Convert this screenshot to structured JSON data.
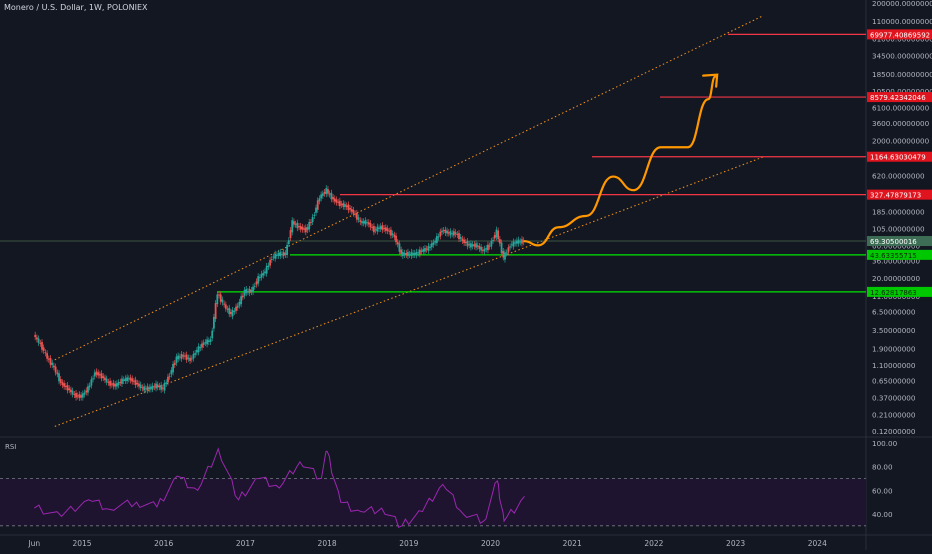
{
  "chart_data": {
    "type": "candlestick",
    "title": "Monero / U.S. Dollar, 1W, POLONIEX",
    "symbol": "XMR/USD",
    "interval": "1W",
    "exchange": "POLONIEX",
    "scale": "log",
    "x_ticks": [
      "Jun",
      "2015",
      "2016",
      "2017",
      "2018",
      "2019",
      "2020",
      "2021",
      "2022",
      "2023",
      "2024"
    ],
    "y_ticks": [
      "200000.00000000",
      "110000.00000000",
      "61000.00000000",
      "34500.00000000",
      "18500.00000000",
      "10500.00000000",
      "6100.00000000",
      "3600.00000000",
      "2000.00000000",
      "1100.00000000",
      "620.00000000",
      "330.00000000",
      "185.00000000",
      "105.00000000",
      "60.00000000",
      "36.00000000",
      "20.00000000",
      "11.00000000",
      "6.50000000",
      "3.50000000",
      "1.90000000",
      "1.10000000",
      "0.65000000",
      "0.37000000",
      "0.21000000",
      "0.12000000"
    ],
    "price_series": [
      {
        "date": "2014-06",
        "price": 3.0
      },
      {
        "date": "2014-07",
        "price": 2.2
      },
      {
        "date": "2014-08",
        "price": 1.4
      },
      {
        "date": "2014-09",
        "price": 1.0
      },
      {
        "date": "2014-10",
        "price": 0.6
      },
      {
        "date": "2014-11",
        "price": 0.5
      },
      {
        "date": "2014-12",
        "price": 0.4
      },
      {
        "date": "2015-01",
        "price": 0.38
      },
      {
        "date": "2015-02",
        "price": 0.5
      },
      {
        "date": "2015-03",
        "price": 0.85
      },
      {
        "date": "2015-04",
        "price": 0.75
      },
      {
        "date": "2015-05",
        "price": 0.6
      },
      {
        "date": "2015-06",
        "price": 0.55
      },
      {
        "date": "2015-07",
        "price": 0.65
      },
      {
        "date": "2015-08",
        "price": 0.7
      },
      {
        "date": "2015-09",
        "price": 0.6
      },
      {
        "date": "2015-10",
        "price": 0.5
      },
      {
        "date": "2015-11",
        "price": 0.5
      },
      {
        "date": "2015-12",
        "price": 0.55
      },
      {
        "date": "2016-01",
        "price": 0.5
      },
      {
        "date": "2016-02",
        "price": 0.8
      },
      {
        "date": "2016-03",
        "price": 1.4
      },
      {
        "date": "2016-04",
        "price": 1.5
      },
      {
        "date": "2016-05",
        "price": 1.3
      },
      {
        "date": "2016-06",
        "price": 1.8
      },
      {
        "date": "2016-07",
        "price": 2.3
      },
      {
        "date": "2016-08",
        "price": 2.5
      },
      {
        "date": "2016-09",
        "price": 12.0
      },
      {
        "date": "2016-10",
        "price": 8.0
      },
      {
        "date": "2016-11",
        "price": 6.0
      },
      {
        "date": "2016-12",
        "price": 8.0
      },
      {
        "date": "2017-01",
        "price": 13.0
      },
      {
        "date": "2017-02",
        "price": 13.0
      },
      {
        "date": "2017-03",
        "price": 20.0
      },
      {
        "date": "2017-04",
        "price": 25.0
      },
      {
        "date": "2017-05",
        "price": 40.0
      },
      {
        "date": "2017-06",
        "price": 45.0
      },
      {
        "date": "2017-07",
        "price": 45.0
      },
      {
        "date": "2017-08",
        "price": 130.0
      },
      {
        "date": "2017-09",
        "price": 110.0
      },
      {
        "date": "2017-10",
        "price": 100.0
      },
      {
        "date": "2017-11",
        "price": 150.0
      },
      {
        "date": "2017-12",
        "price": 300.0
      },
      {
        "date": "2018-01",
        "price": 380.0
      },
      {
        "date": "2018-02",
        "price": 280.0
      },
      {
        "date": "2018-03",
        "price": 240.0
      },
      {
        "date": "2018-04",
        "price": 220.0
      },
      {
        "date": "2018-05",
        "price": 180.0
      },
      {
        "date": "2018-06",
        "price": 130.0
      },
      {
        "date": "2018-07",
        "price": 130.0
      },
      {
        "date": "2018-08",
        "price": 100.0
      },
      {
        "date": "2018-09",
        "price": 110.0
      },
      {
        "date": "2018-10",
        "price": 100.0
      },
      {
        "date": "2018-11",
        "price": 80.0
      },
      {
        "date": "2018-12",
        "price": 45.0
      },
      {
        "date": "2019-01",
        "price": 45.0
      },
      {
        "date": "2019-02",
        "price": 45.0
      },
      {
        "date": "2019-03",
        "price": 50.0
      },
      {
        "date": "2019-04",
        "price": 55.0
      },
      {
        "date": "2019-05",
        "price": 70.0
      },
      {
        "date": "2019-06",
        "price": 100.0
      },
      {
        "date": "2019-07",
        "price": 90.0
      },
      {
        "date": "2019-08",
        "price": 90.0
      },
      {
        "date": "2019-09",
        "price": 70.0
      },
      {
        "date": "2019-10",
        "price": 60.0
      },
      {
        "date": "2019-11",
        "price": 60.0
      },
      {
        "date": "2019-12",
        "price": 50.0
      },
      {
        "date": "2020-01",
        "price": 60.0
      },
      {
        "date": "2020-02",
        "price": 95.0
      },
      {
        "date": "2020-03",
        "price": 40.0
      },
      {
        "date": "2020-04",
        "price": 60.0
      },
      {
        "date": "2020-05",
        "price": 68.0
      },
      {
        "date": "2020-06",
        "price": 69.0
      }
    ],
    "projection_path": [
      {
        "date": "2020-06",
        "price": 69
      },
      {
        "date": "2020-08",
        "price": 60
      },
      {
        "date": "2020-11",
        "price": 110
      },
      {
        "date": "2021-03",
        "price": 160
      },
      {
        "date": "2021-07",
        "price": 600
      },
      {
        "date": "2021-10",
        "price": 380
      },
      {
        "date": "2022-02",
        "price": 1600
      },
      {
        "date": "2022-06",
        "price": 1600
      },
      {
        "date": "2022-09",
        "price": 8000
      },
      {
        "date": "2022-10",
        "price": 17000
      }
    ],
    "channel": {
      "upper": [
        {
          "date": "2014-09",
          "price": 1.3
        },
        {
          "date": "2023-05",
          "price": 130000
        }
      ],
      "lower": [
        {
          "date": "2014-09",
          "price": 0.14
        },
        {
          "date": "2023-05",
          "price": 1150
        }
      ]
    },
    "levels": [
      {
        "label": "69977.40869592",
        "value": 69977.40869592,
        "color": "#f23645"
      },
      {
        "label": "8579.42342046",
        "value": 8579.42342046,
        "color": "#f23645"
      },
      {
        "label": "1164.63030479",
        "value": 1164.63030479,
        "color": "#f23645"
      },
      {
        "label": "327.47879173",
        "value": 327.47879173,
        "color": "#f23645"
      },
      {
        "label": "43.63355715",
        "value": 43.63355715,
        "color": "#00e600"
      },
      {
        "label": "12.62817863",
        "value": 12.62817863,
        "color": "#00e600"
      }
    ],
    "last_price": {
      "label": "69.30500016",
      "value": 69.30500016
    },
    "rsi": {
      "label": "RSI",
      "ticks": [
        "100.00",
        "80.00",
        "60.00",
        "40.00"
      ],
      "upper_band": 70,
      "lower_band": 30,
      "values": [
        {
          "date": "2014-06",
          "v": 45
        },
        {
          "date": "2014-10",
          "v": 38
        },
        {
          "date": "2015-02",
          "v": 52
        },
        {
          "date": "2015-05",
          "v": 44
        },
        {
          "date": "2015-09",
          "v": 50
        },
        {
          "date": "2015-12",
          "v": 46
        },
        {
          "date": "2016-03",
          "v": 72
        },
        {
          "date": "2016-06",
          "v": 60
        },
        {
          "date": "2016-09",
          "v": 95
        },
        {
          "date": "2016-12",
          "v": 52
        },
        {
          "date": "2017-03",
          "v": 70
        },
        {
          "date": "2017-06",
          "v": 62
        },
        {
          "date": "2017-09",
          "v": 84
        },
        {
          "date": "2017-12",
          "v": 70
        },
        {
          "date": "2018-01",
          "v": 93
        },
        {
          "date": "2018-03",
          "v": 50
        },
        {
          "date": "2018-06",
          "v": 42
        },
        {
          "date": "2018-09",
          "v": 45
        },
        {
          "date": "2018-12",
          "v": 30
        },
        {
          "date": "2019-03",
          "v": 42
        },
        {
          "date": "2019-06",
          "v": 65
        },
        {
          "date": "2019-09",
          "v": 40
        },
        {
          "date": "2019-12",
          "v": 34
        },
        {
          "date": "2020-02",
          "v": 68
        },
        {
          "date": "2020-03",
          "v": 34
        },
        {
          "date": "2020-06",
          "v": 55
        }
      ]
    }
  },
  "colors": {
    "background": "#131722",
    "grid": "#2a2e39",
    "up_candle": "#26a69a",
    "down_candle": "#ef5350",
    "channel": "#f7931a",
    "projection": "#ff9800",
    "rsi_line": "#9c27b0",
    "rsi_band_fill": "#1e1430",
    "current_price_line": "#4c6b4c"
  }
}
